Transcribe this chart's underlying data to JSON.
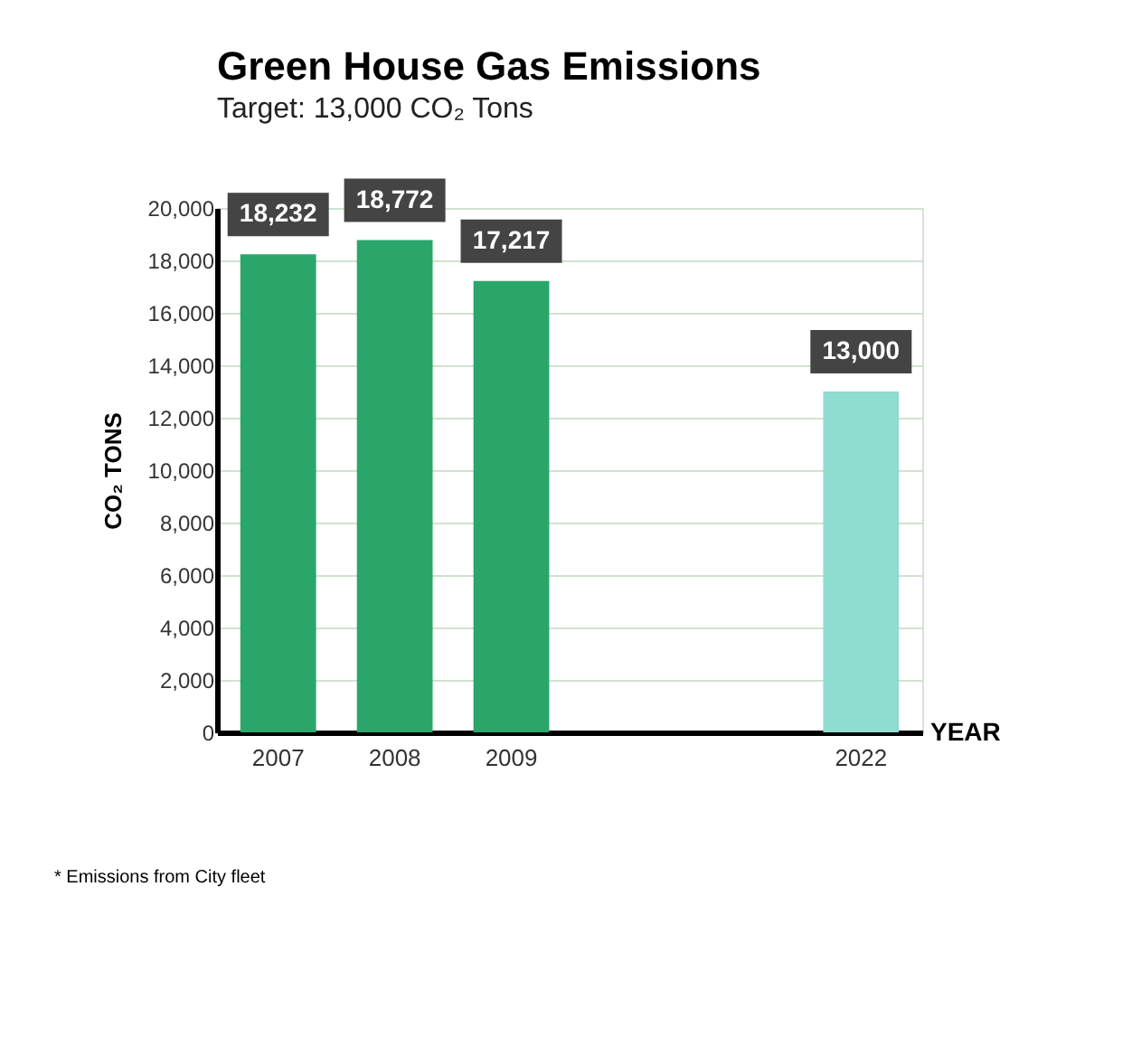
{
  "chart_data": {
    "type": "bar",
    "title": "Green House Gas Emissions",
    "subtitle": "Target: 13,000 CO₂ Tons",
    "categories": [
      "2007",
      "2008",
      "2009",
      null,
      null,
      "2022"
    ],
    "values": [
      18232,
      18772,
      17217,
      null,
      null,
      13000
    ],
    "value_labels": [
      "18,232",
      "18,772",
      "17,217",
      null,
      null,
      "13,000"
    ],
    "colors": [
      "#2aa66a",
      "#2aa66a",
      "#2aa66a",
      null,
      null,
      "#8fdcd0"
    ],
    "xlabel": "YEAR",
    "ylabel": "CO₂ TONS",
    "ylim": [
      0,
      20000
    ],
    "yticks": [
      0,
      {
        "value": 2000,
        "label": "2,000"
      },
      {
        "value": 4000,
        "label": "4,000"
      },
      {
        "value": 6000,
        "label": "6,000"
      },
      {
        "value": 8000,
        "label": "8,000"
      },
      {
        "value": 10000,
        "label": "10,000"
      },
      {
        "value": 12000,
        "label": "12,000"
      },
      {
        "value": 14000,
        "label": "14,000"
      },
      {
        "value": 16000,
        "label": "16,000"
      },
      {
        "value": 18000,
        "label": "18,000"
      },
      {
        "value": 20000,
        "label": "20,000"
      }
    ],
    "grid": "y",
    "annotations": [
      "* Emissions from City fleet"
    ]
  }
}
